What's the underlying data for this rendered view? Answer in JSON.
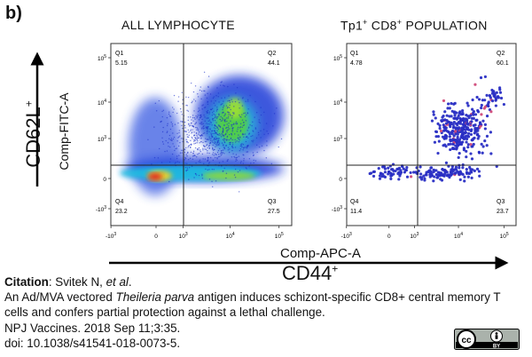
{
  "figure": {
    "panel_letter": "b)",
    "y_marker_main": "CD62L",
    "y_marker_sup": "+",
    "y_axis_label": "Comp-FITC-A",
    "x_axis_label": "Comp-APC-A",
    "x_marker_main": "CD44",
    "x_marker_sup": "+"
  },
  "chart_data": [
    {
      "type": "scatter",
      "title": "ALL LYMPHOCYTE",
      "xlabel": "Comp-APC-A",
      "ylabel": "Comp-FITC-A",
      "scale": "biexponential",
      "x_ticks": [
        "-10^3",
        "0",
        "10^3",
        "10^4",
        "10^5"
      ],
      "y_ticks": [
        "10^5",
        "10^4",
        "10^3",
        "0",
        "-10^3"
      ],
      "quadrants": [
        {
          "id": "Q1",
          "value": "5.15"
        },
        {
          "id": "Q2",
          "value": "44.1"
        },
        {
          "id": "Q3",
          "value": "27.5"
        },
        {
          "id": "Q4",
          "value": "23.2"
        }
      ]
    },
    {
      "type": "scatter",
      "title_main": "Tp1",
      "title_sup": "+",
      "title_rest": " CD8",
      "title_sup2": "+",
      "title_tail": " POPULATION",
      "xlabel": "Comp-APC-A",
      "ylabel": "Comp-FITC-A",
      "scale": "biexponential",
      "x_ticks": [
        "-10^3",
        "0",
        "10^3",
        "10^4",
        "10^5"
      ],
      "y_ticks": [
        "10^5",
        "10^4",
        "10^3",
        "0",
        "-10^3"
      ],
      "quadrants": [
        {
          "id": "Q1",
          "value": "4.78"
        },
        {
          "id": "Q2",
          "value": "60.1"
        },
        {
          "id": "Q3",
          "value": "23.7"
        },
        {
          "id": "Q4",
          "value": "11.4"
        }
      ]
    }
  ],
  "citation": {
    "label": "Citation",
    "authors": ": Svitek N, ",
    "etal": "et al",
    "authors_end": ".",
    "title_start": "An Ad/MVA vectored ",
    "title_italic": "Theileria parva",
    "title_end": " antigen induces schizont-specific CD8+ central memory T cells and confers partial protection against a lethal challenge.",
    "journal": "NPJ Vaccines. 2018 Sep 11;3:35.",
    "doi": "doi: 10.1038/s41541-018-0073-5."
  },
  "license": {
    "icon": "creative-commons-by-icon",
    "label": "BY"
  }
}
